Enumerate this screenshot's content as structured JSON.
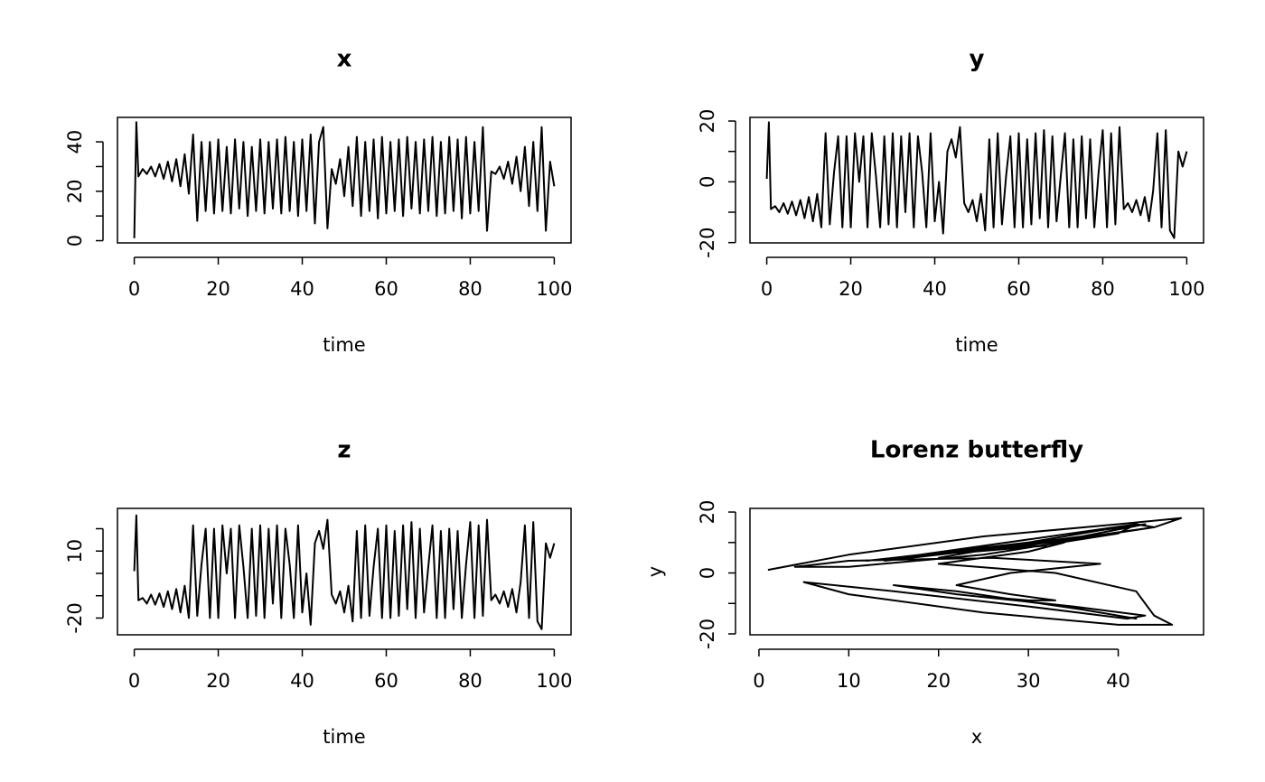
{
  "chart_data": [
    {
      "type": "line",
      "title": "x",
      "xlabel": "time",
      "xlim": [
        -4,
        104
      ],
      "ylim": [
        -0.9,
        49.9
      ],
      "xticks": [
        0,
        20,
        40,
        60,
        80,
        100
      ],
      "yticks": [
        0,
        {
          "value": 10,
          "label": null
        },
        20,
        {
          "value": 30,
          "label": null
        },
        40
      ],
      "x": [
        0,
        0.5,
        1,
        2,
        3,
        4,
        5,
        6,
        7,
        8,
        9,
        10,
        11,
        12,
        13,
        14,
        15,
        16,
        17,
        18,
        19,
        20,
        21,
        22,
        23,
        24,
        25,
        26,
        27,
        28,
        29,
        30,
        31,
        32,
        33,
        34,
        35,
        36,
        37,
        38,
        39,
        40,
        41,
        42,
        43,
        44,
        45,
        46,
        47,
        48,
        49,
        50,
        51,
        52,
        53,
        54,
        55,
        56,
        57,
        58,
        59,
        60,
        61,
        62,
        63,
        64,
        65,
        66,
        67,
        68,
        69,
        70,
        71,
        72,
        73,
        74,
        75,
        76,
        77,
        78,
        79,
        80,
        81,
        82,
        83,
        84,
        85,
        86,
        87,
        88,
        89,
        90,
        91,
        92,
        93,
        94,
        95,
        96,
        97,
        98,
        99,
        100
      ],
      "values": [
        1,
        48,
        26,
        29,
        27,
        30,
        26,
        31,
        25,
        32,
        24,
        33,
        22,
        35,
        19,
        43,
        8,
        40,
        12,
        40,
        11,
        41,
        12,
        38,
        11,
        41,
        13,
        40,
        10,
        38,
        12,
        41,
        11,
        40,
        13,
        41,
        11,
        42,
        12,
        40,
        10,
        41,
        12,
        43,
        7,
        40,
        46,
        5,
        29,
        23,
        33,
        18,
        38,
        14,
        42,
        10,
        40,
        12,
        41,
        9,
        42,
        11,
        40,
        12,
        41,
        10,
        42,
        13,
        40,
        11,
        41,
        12,
        42,
        10,
        40,
        11,
        42,
        12,
        41,
        9,
        42,
        11,
        40,
        12,
        46,
        4,
        28,
        27,
        30,
        25,
        32,
        23,
        34,
        20,
        38,
        14,
        40,
        12,
        46,
        4,
        32,
        22
      ]
    },
    {
      "type": "line",
      "title": "y",
      "xlabel": "time",
      "xlim": [
        -4,
        104
      ],
      "ylim": [
        -20.1,
        21.2
      ],
      "xticks": [
        0,
        20,
        40,
        60,
        80,
        100
      ],
      "yticks": [
        {
          "value": -20,
          "label": "-20"
        },
        {
          "value": -10,
          "label": null
        },
        0,
        {
          "value": 10,
          "label": null
        },
        20
      ],
      "x": [
        0,
        0.5,
        1,
        2,
        3,
        4,
        5,
        6,
        7,
        8,
        9,
        10,
        11,
        12,
        13,
        14,
        15,
        16,
        17,
        18,
        19,
        20,
        21,
        22,
        23,
        24,
        25,
        26,
        27,
        28,
        29,
        30,
        31,
        32,
        33,
        34,
        35,
        36,
        37,
        38,
        39,
        40,
        41,
        42,
        43,
        44,
        45,
        46,
        47,
        48,
        49,
        50,
        51,
        52,
        53,
        54,
        55,
        56,
        57,
        58,
        59,
        60,
        61,
        62,
        63,
        64,
        65,
        66,
        67,
        68,
        69,
        70,
        71,
        72,
        73,
        74,
        75,
        76,
        77,
        78,
        79,
        80,
        81,
        82,
        83,
        84,
        85,
        86,
        87,
        88,
        89,
        90,
        91,
        92,
        93,
        94,
        95,
        96,
        97,
        98,
        99,
        100
      ],
      "values": [
        1,
        19.6,
        -9,
        -8,
        -10,
        -7,
        -10.5,
        -6.5,
        -11,
        -6,
        -12,
        -5,
        -13,
        -4,
        -15,
        16,
        -14,
        3,
        15,
        -15,
        15,
        -15,
        16,
        0,
        15,
        -15,
        16,
        2,
        -15,
        15,
        -14,
        16,
        -15,
        15,
        -10,
        16,
        -15,
        15,
        3,
        -15,
        16,
        -13,
        0,
        -17,
        10,
        14,
        8,
        18,
        -7,
        -10,
        -6,
        -13,
        -4,
        -16,
        14,
        -15,
        16,
        -14,
        2,
        15,
        -15,
        16,
        -15,
        14,
        -14,
        16,
        -12,
        17,
        -15,
        15,
        -13,
        2,
        16,
        -15,
        14,
        -15,
        15,
        -12,
        14,
        -15,
        3,
        17,
        -15,
        16,
        -14,
        18,
        -9,
        -7,
        -10,
        -6,
        -11,
        -5,
        -13,
        -3,
        16,
        -15,
        17,
        -16,
        -18.5,
        10,
        5,
        10
      ]
    },
    {
      "type": "line",
      "title": "z",
      "xlabel": "time",
      "xlim": [
        -4,
        104
      ],
      "ylim": [
        -27.5,
        29.1
      ],
      "xticks": [
        0,
        20,
        40,
        60,
        80,
        100
      ],
      "yticks": [
        {
          "value": -20,
          "label": "-20"
        },
        {
          "value": -10,
          "label": null
        },
        {
          "value": 0,
          "label": null
        },
        10,
        {
          "value": 20,
          "label": null
        }
      ],
      "x": [
        0,
        0.5,
        1,
        2,
        3,
        4,
        5,
        6,
        7,
        8,
        9,
        10,
        11,
        12,
        13,
        14,
        15,
        16,
        17,
        18,
        19,
        20,
        21,
        22,
        23,
        24,
        25,
        26,
        27,
        28,
        29,
        30,
        31,
        32,
        33,
        34,
        35,
        36,
        37,
        38,
        39,
        40,
        41,
        42,
        43,
        44,
        45,
        46,
        47,
        48,
        49,
        50,
        51,
        52,
        53,
        54,
        55,
        56,
        57,
        58,
        59,
        60,
        61,
        62,
        63,
        64,
        65,
        66,
        67,
        68,
        69,
        70,
        71,
        72,
        73,
        74,
        75,
        76,
        77,
        78,
        79,
        80,
        81,
        82,
        83,
        84,
        85,
        86,
        87,
        88,
        89,
        90,
        91,
        92,
        93,
        94,
        95,
        96,
        97,
        98,
        99,
        100
      ],
      "values": [
        1,
        26,
        -12,
        -11,
        -13.5,
        -9.5,
        -14,
        -9,
        -15,
        -8,
        -16,
        -7,
        -17.5,
        -5.5,
        -20,
        21.5,
        -19,
        4,
        20,
        -20,
        20,
        -20,
        21.5,
        0,
        20,
        -20,
        21.5,
        3,
        -20,
        20,
        -19,
        21.5,
        -20,
        20,
        -13.5,
        21.5,
        -20,
        20,
        4,
        -20,
        21.5,
        -17.5,
        0,
        -23,
        13.5,
        19,
        11,
        24,
        -9.5,
        -13.5,
        -8,
        -17.5,
        -5.5,
        -21.5,
        19,
        -20,
        21.5,
        -19,
        3,
        20,
        -20,
        21.5,
        -20,
        19,
        -19,
        21.5,
        -16,
        23,
        -20,
        20,
        -17.5,
        3,
        21.5,
        -20,
        19,
        -20,
        20,
        -16,
        19,
        -20,
        4,
        23,
        -20,
        21.5,
        -19,
        24,
        -12,
        -9.5,
        -13.5,
        -8,
        -15,
        -7,
        -17.5,
        -4,
        21.5,
        -20,
        23,
        -21.5,
        -25,
        13.5,
        7,
        13.5
      ]
    },
    {
      "type": "line",
      "title": "Lorenz butterfly",
      "xlabel": "x",
      "ylabel": "y",
      "xlim": [
        -1,
        49.5
      ],
      "ylim": [
        -20.3,
        21.2
      ],
      "xticks": [
        0,
        10,
        20,
        30,
        40
      ],
      "yticks": [
        {
          "value": -20,
          "label": "-20"
        },
        {
          "value": -10,
          "label": null
        },
        0,
        {
          "value": 10,
          "label": null
        },
        20
      ],
      "x": [
        1,
        10,
        25,
        40,
        47,
        44,
        32,
        20,
        14,
        18,
        30,
        42,
        44,
        35,
        24,
        20,
        26,
        38,
        43,
        36,
        28,
        25,
        30,
        34,
        30,
        20,
        33,
        42,
        44,
        46,
        40,
        25,
        10,
        5,
        15,
        30,
        41,
        43,
        35,
        22,
        15,
        22,
        36,
        42,
        34,
        26,
        30,
        33,
        28,
        22,
        28,
        38,
        26,
        10,
        4,
        10,
        25,
        40,
        42,
        30,
        15,
        12,
        25,
        32,
        24,
        28
      ],
      "values": [
        1,
        6,
        12,
        16,
        18,
        15,
        10,
        6,
        4,
        6,
        11,
        16,
        15,
        11,
        7,
        5,
        8,
        14,
        16,
        12,
        9,
        8,
        10,
        10,
        7,
        3,
        0,
        -6,
        -14,
        -17,
        -17,
        -13,
        -7,
        -3,
        -6,
        -11,
        -15,
        -14,
        -11,
        -7,
        -4,
        -6,
        -12,
        -15,
        -11,
        -8,
        -9,
        -9,
        -7,
        -4,
        0,
        3,
        5,
        4,
        2,
        2,
        6,
        13,
        16,
        10,
        5,
        4,
        8,
        9,
        7,
        8
      ]
    }
  ]
}
